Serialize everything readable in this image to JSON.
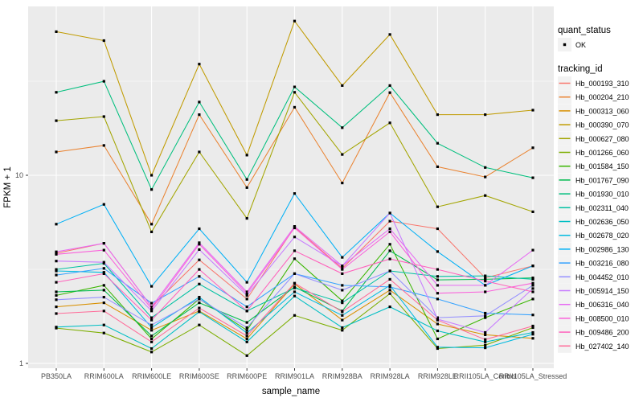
{
  "figure": {
    "background": "#FFFFFF",
    "panel_fill": "#EBEBEB",
    "grid_color": "#FFFFFF",
    "axis_text_color": "#4D4D4D",
    "point_color": "#000000",
    "legend_key_fill": "#F2F2F2"
  },
  "legend": {
    "quant_status_title": "quant_status",
    "ok_label": "OK",
    "tracking_id_title": "tracking_id"
  },
  "chart_data": {
    "type": "line",
    "title": "",
    "xlabel": "sample_name",
    "ylabel": "FPKM + 1",
    "y_scale": "log10",
    "ylim": [
      0.94,
      79
    ],
    "y_major_ticks": [
      1,
      10
    ],
    "y_minor_ticks": [
      3.162,
      31.623
    ],
    "grid": "white major+minor on gray panel",
    "legend_position": "right",
    "point_marker": "small black square (quant_status OK)",
    "categories": [
      "PB350LA",
      "RRIM600LA",
      "RRIM600LE",
      "RRIM600SE",
      "RRIM600PE",
      "RRIM901LA",
      "RRIM928BA",
      "RRIM928LA",
      "RRIM928LE",
      "RRII105LA_Control",
      "RRII105LA_Stressed"
    ],
    "series": [
      {
        "name": "Hb_000193_310",
        "color": "#F8766D",
        "values": [
          3.85,
          4.35,
          2.0,
          3.55,
          2.2,
          5.3,
          3.2,
          5.7,
          5.2,
          2.85,
          3.3
        ]
      },
      {
        "name": "Hb_000204_210",
        "color": "#EA8331",
        "values": [
          13.3,
          14.4,
          5.5,
          21.0,
          8.6,
          23.0,
          9.1,
          27.5,
          11.1,
          9.8,
          14.0
        ]
      },
      {
        "name": "Hb_000313_060",
        "color": "#D89000",
        "values": [
          2.0,
          2.1,
          1.5,
          1.9,
          1.35,
          2.65,
          1.7,
          2.45,
          1.62,
          1.42,
          1.36
        ]
      },
      {
        "name": "Hb_000390_070",
        "color": "#C09B00",
        "values": [
          58.0,
          52.0,
          10.0,
          39.0,
          12.8,
          66.0,
          30.0,
          56.0,
          21.0,
          21.0,
          22.2
        ]
      },
      {
        "name": "Hb_000627_080",
        "color": "#A3A500",
        "values": [
          19.5,
          20.5,
          5.0,
          13.3,
          5.9,
          27.6,
          12.9,
          19.0,
          6.8,
          7.8,
          6.4
        ]
      },
      {
        "name": "Hb_001266_060",
        "color": "#7CAE00",
        "values": [
          1.54,
          1.45,
          1.15,
          1.6,
          1.1,
          1.8,
          1.5,
          2.35,
          1.2,
          1.25,
          1.55
        ]
      },
      {
        "name": "Hb_001584_150",
        "color": "#39B600",
        "values": [
          2.3,
          2.6,
          1.35,
          2.2,
          1.5,
          3.6,
          2.15,
          4.3,
          1.35,
          1.75,
          2.2
        ]
      },
      {
        "name": "Hb_001767_090",
        "color": "#00BB4E",
        "values": [
          2.4,
          2.45,
          1.4,
          2.1,
          1.65,
          2.55,
          1.9,
          3.97,
          2.78,
          2.8,
          2.85
        ]
      },
      {
        "name": "Hb_001930_010",
        "color": "#00BF7D",
        "values": [
          27.6,
          31.6,
          8.4,
          24.5,
          9.5,
          29.5,
          17.9,
          30.0,
          14.8,
          11.0,
          9.7
        ]
      },
      {
        "name": "Hb_002311_040",
        "color": "#00C1A3",
        "values": [
          3.16,
          3.4,
          1.75,
          2.64,
          1.9,
          2.52,
          2.1,
          3.1,
          2.9,
          2.92,
          2.8
        ]
      },
      {
        "name": "Hb_002636_050",
        "color": "#00BFC4",
        "values": [
          1.56,
          1.6,
          1.2,
          1.88,
          1.3,
          2.28,
          1.55,
          2.0,
          1.49,
          1.3,
          1.46
        ]
      },
      {
        "name": "Hb_002678_020",
        "color": "#00BAE0",
        "values": [
          3.1,
          3.05,
          1.55,
          2.25,
          1.45,
          2.4,
          1.8,
          2.6,
          1.22,
          1.21,
          1.43
        ]
      },
      {
        "name": "Hb_002986_130",
        "color": "#00B0F6",
        "values": [
          5.5,
          7.0,
          2.57,
          5.2,
          2.7,
          8.0,
          3.66,
          6.3,
          3.93,
          2.6,
          3.3
        ]
      },
      {
        "name": "Hb_003216_080",
        "color": "#35A2FF",
        "values": [
          2.95,
          3.2,
          2.09,
          2.9,
          2.0,
          3.0,
          2.6,
          2.55,
          2.2,
          1.85,
          1.81
        ]
      },
      {
        "name": "Hb_004452_010",
        "color": "#9590FF",
        "values": [
          2.18,
          2.25,
          1.6,
          2.2,
          1.55,
          3.0,
          2.45,
          3.1,
          1.75,
          1.79,
          2.6
        ]
      },
      {
        "name": "Hb_005914_150",
        "color": "#C77CFF",
        "values": [
          3.5,
          3.45,
          1.9,
          4.03,
          2.3,
          4.7,
          3.3,
          6.3,
          1.72,
          1.46,
          2.5
        ]
      },
      {
        "name": "Hb_006316_040",
        "color": "#E76BF3",
        "values": [
          3.92,
          4.35,
          2.0,
          4.38,
          2.4,
          5.35,
          3.3,
          5.2,
          2.6,
          2.6,
          4.0
        ]
      },
      {
        "name": "Hb_008500_010",
        "color": "#FA62DB",
        "values": [
          3.8,
          4.0,
          1.95,
          4.3,
          2.35,
          5.25,
          3.16,
          5.0,
          2.36,
          2.4,
          2.67
        ]
      },
      {
        "name": "Hb_009486_200",
        "color": "#FF62BC",
        "values": [
          2.7,
          3.0,
          1.7,
          3.16,
          1.9,
          3.97,
          3.0,
          3.59,
          3.16,
          2.74,
          2.4
        ]
      },
      {
        "name": "Hb_027402_140",
        "color": "#FF6A98",
        "values": [
          1.84,
          1.9,
          1.3,
          1.97,
          1.4,
          2.67,
          1.88,
          2.8,
          1.7,
          1.34,
          1.58
        ]
      }
    ]
  }
}
